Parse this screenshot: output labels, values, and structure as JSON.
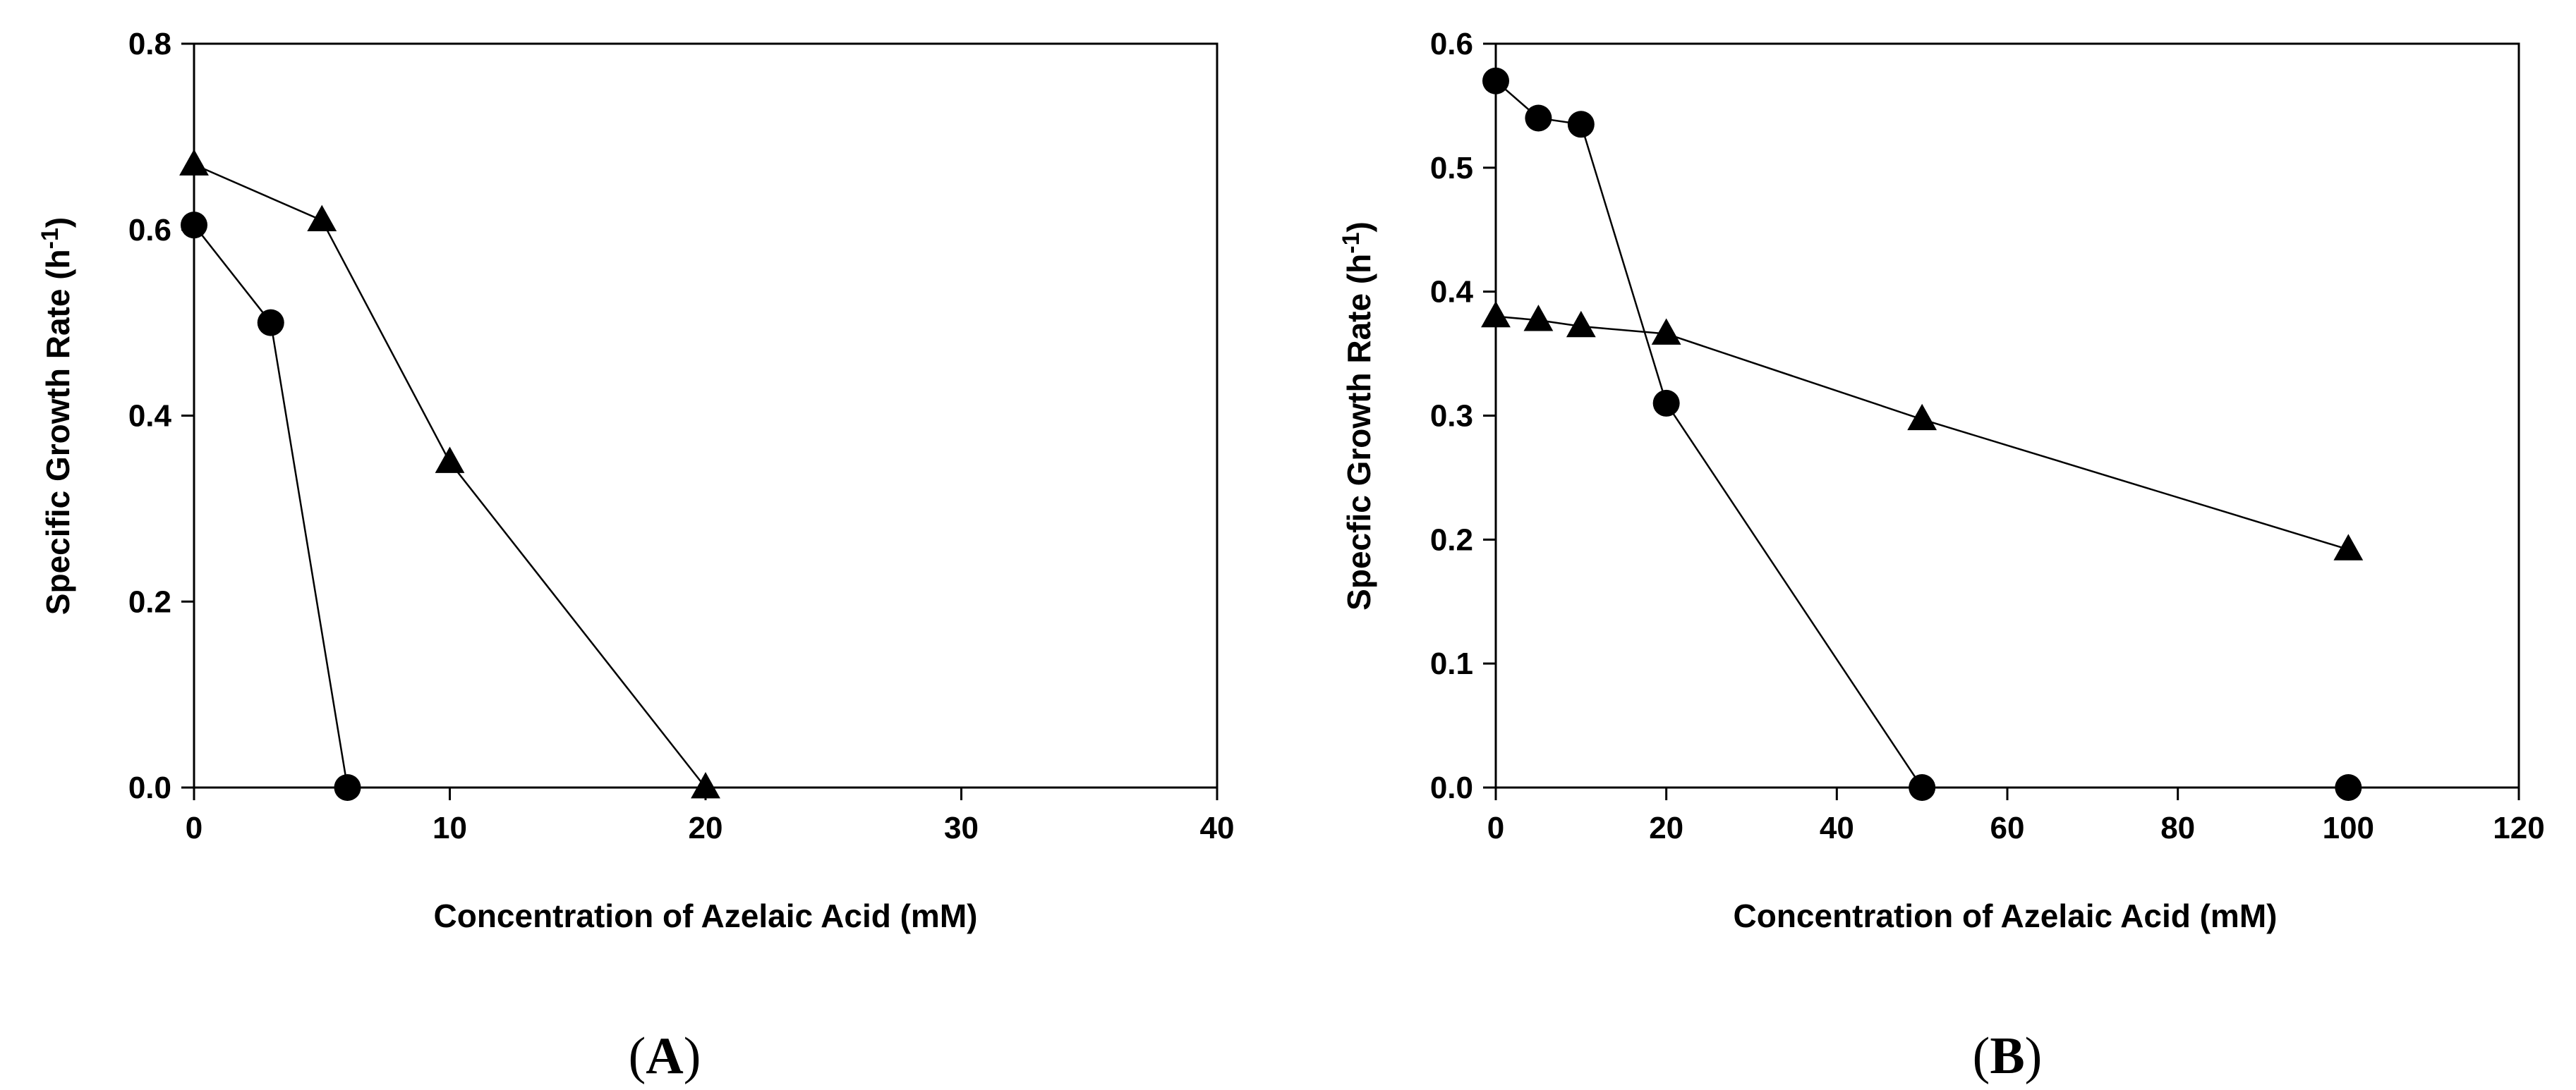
{
  "chart_data": [
    {
      "type": "line",
      "panel_label": "A",
      "xlabel": "Concentration of Azelaic Acid (mM)",
      "ylabel": "Specific Growth Rate (h",
      "ylabel_sup": "-1",
      "ylabel_tail": ")",
      "xlim": [
        0,
        40
      ],
      "ylim": [
        0.0,
        0.8
      ],
      "xticks": [
        0,
        10,
        20,
        30,
        40
      ],
      "xtick_labels": [
        "0",
        "10",
        "20",
        "30",
        "40"
      ],
      "yticks": [
        0.0,
        0.2,
        0.4,
        0.6,
        0.8
      ],
      "ytick_labels": [
        "0.0",
        "0.2",
        "0.4",
        "0.6",
        "0.8"
      ],
      "grid": false,
      "series": [
        {
          "name": "circle",
          "marker": "circle",
          "x": [
            0,
            3,
            6
          ],
          "y": [
            0.605,
            0.5,
            0.0
          ]
        },
        {
          "name": "triangle",
          "marker": "triangle",
          "x": [
            0,
            5,
            10,
            20
          ],
          "y": [
            0.67,
            0.61,
            0.35,
            0.0
          ]
        }
      ]
    },
    {
      "type": "line",
      "panel_label": "B",
      "xlabel": "Concentration of Azelaic Acid (mM)",
      "ylabel": "Specfic Growth Rate (h",
      "ylabel_sup": "-1",
      "ylabel_tail": ")",
      "xlim": [
        0,
        120
      ],
      "ylim": [
        0.0,
        0.6
      ],
      "xticks": [
        0,
        20,
        40,
        60,
        80,
        100,
        120
      ],
      "xtick_labels": [
        "0",
        "20",
        "40",
        "60",
        "80",
        "100",
        "120"
      ],
      "yticks": [
        0.0,
        0.1,
        0.2,
        0.3,
        0.4,
        0.5,
        0.6
      ],
      "ytick_labels": [
        "0.0",
        "0.1",
        "0.2",
        "0.3",
        "0.4",
        "0.5",
        "0.6"
      ],
      "grid": false,
      "series": [
        {
          "name": "circle",
          "marker": "circle",
          "x": [
            0,
            5,
            10,
            20,
            50,
            100
          ],
          "y": [
            0.57,
            0.54,
            0.535,
            0.31,
            0.0,
            0.0
          ]
        },
        {
          "name": "triangle",
          "marker": "triangle",
          "x": [
            0,
            5,
            10,
            20,
            50,
            100
          ],
          "y": [
            0.38,
            0.377,
            0.372,
            0.366,
            0.297,
            0.192
          ]
        }
      ]
    }
  ]
}
